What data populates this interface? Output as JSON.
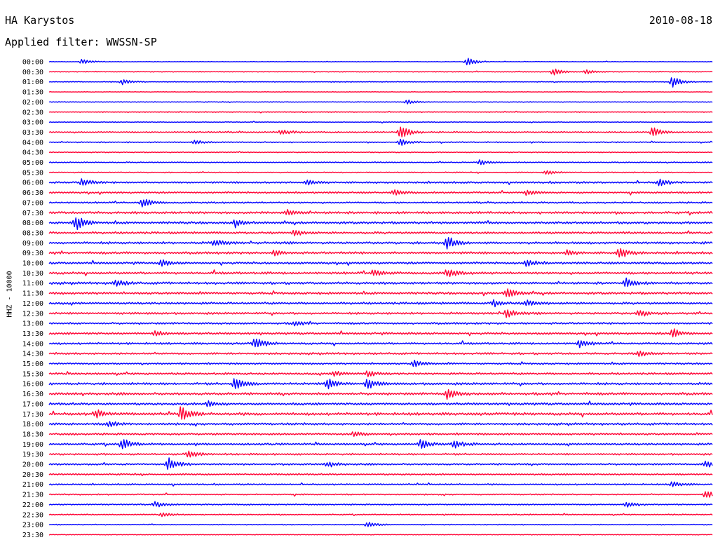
{
  "header": {
    "station": "HA Karystos",
    "date": "2010-08-18",
    "filter": "Applied filter: WWSSN-SP"
  },
  "chart_data": {
    "type": "line",
    "title": "HA Karystos",
    "subtitle": "Applied filter: WWSSN-SP",
    "ylabel": "HHZ - 10000",
    "xlabel": "",
    "grid": false,
    "trace_colors": [
      "#0000ff",
      "#ff0033"
    ],
    "row_labels": [
      "00:00",
      "00:30",
      "01:00",
      "01:30",
      "02:00",
      "02:30",
      "03:00",
      "03:30",
      "04:00",
      "04:30",
      "05:00",
      "05:30",
      "06:00",
      "06:30",
      "07:00",
      "07:30",
      "08:00",
      "08:30",
      "09:00",
      "09:30",
      "10:00",
      "10:30",
      "11:00",
      "11:30",
      "12:00",
      "12:30",
      "13:00",
      "13:30",
      "14:00",
      "14:30",
      "15:00",
      "15:30",
      "16:00",
      "16:30",
      "17:00",
      "17:30",
      "18:00",
      "18:30",
      "19:00",
      "19:30",
      "20:00",
      "20:30",
      "21:00",
      "21:30",
      "22:00",
      "22:30",
      "23:00",
      "23:30"
    ],
    "row_noise": [
      0.3,
      0.4,
      0.4,
      0.3,
      0.4,
      0.4,
      0.4,
      0.8,
      0.6,
      0.5,
      0.6,
      0.6,
      1.0,
      1.0,
      0.9,
      1.3,
      1.3,
      1.2,
      1.3,
      1.3,
      1.2,
      1.3,
      1.3,
      1.3,
      1.2,
      1.2,
      1.1,
      1.2,
      1.1,
      1.1,
      1.0,
      1.1,
      1.3,
      1.4,
      1.3,
      1.5,
      1.2,
      1.1,
      1.1,
      1.0,
      1.0,
      0.9,
      0.8,
      0.7,
      0.7,
      0.6,
      0.5,
      0.4
    ],
    "events": [
      {
        "row": 0,
        "x": 0.05,
        "amp": 4
      },
      {
        "row": 0,
        "x": 0.63,
        "amp": 6
      },
      {
        "row": 1,
        "x": 0.76,
        "amp": 5
      },
      {
        "row": 1,
        "x": 0.81,
        "amp": 3
      },
      {
        "row": 2,
        "x": 0.11,
        "amp": 4
      },
      {
        "row": 2,
        "x": 0.94,
        "amp": 8
      },
      {
        "row": 4,
        "x": 0.54,
        "amp": 3
      },
      {
        "row": 7,
        "x": 0.35,
        "amp": 4
      },
      {
        "row": 7,
        "x": 0.53,
        "amp": 9
      },
      {
        "row": 7,
        "x": 0.91,
        "amp": 7
      },
      {
        "row": 8,
        "x": 0.22,
        "amp": 3
      },
      {
        "row": 8,
        "x": 0.53,
        "amp": 5
      },
      {
        "row": 10,
        "x": 0.65,
        "amp": 4
      },
      {
        "row": 11,
        "x": 0.75,
        "amp": 3
      },
      {
        "row": 12,
        "x": 0.05,
        "amp": 6
      },
      {
        "row": 12,
        "x": 0.39,
        "amp": 4
      },
      {
        "row": 12,
        "x": 0.92,
        "amp": 5
      },
      {
        "row": 13,
        "x": 0.52,
        "amp": 4
      },
      {
        "row": 13,
        "x": 0.72,
        "amp": 4
      },
      {
        "row": 14,
        "x": 0.14,
        "amp": 7
      },
      {
        "row": 15,
        "x": 0.36,
        "amp": 4
      },
      {
        "row": 16,
        "x": 0.04,
        "amp": 11
      },
      {
        "row": 16,
        "x": 0.28,
        "amp": 4
      },
      {
        "row": 17,
        "x": 0.37,
        "amp": 4
      },
      {
        "row": 18,
        "x": 0.25,
        "amp": 5
      },
      {
        "row": 18,
        "x": 0.6,
        "amp": 9
      },
      {
        "row": 19,
        "x": 0.34,
        "amp": 4
      },
      {
        "row": 19,
        "x": 0.78,
        "amp": 4
      },
      {
        "row": 19,
        "x": 0.86,
        "amp": 7
      },
      {
        "row": 20,
        "x": 0.17,
        "amp": 4
      },
      {
        "row": 20,
        "x": 0.72,
        "amp": 5
      },
      {
        "row": 21,
        "x": 0.49,
        "amp": 5
      },
      {
        "row": 21,
        "x": 0.6,
        "amp": 6
      },
      {
        "row": 22,
        "x": 0.1,
        "amp": 5
      },
      {
        "row": 22,
        "x": 0.87,
        "amp": 6
      },
      {
        "row": 23,
        "x": 0.69,
        "amp": 7
      },
      {
        "row": 24,
        "x": 0.67,
        "amp": 5
      },
      {
        "row": 24,
        "x": 0.72,
        "amp": 5
      },
      {
        "row": 25,
        "x": 0.69,
        "amp": 6
      },
      {
        "row": 25,
        "x": 0.89,
        "amp": 5
      },
      {
        "row": 26,
        "x": 0.37,
        "amp": 3
      },
      {
        "row": 27,
        "x": 0.16,
        "amp": 4
      },
      {
        "row": 27,
        "x": 0.94,
        "amp": 7
      },
      {
        "row": 28,
        "x": 0.31,
        "amp": 9
      },
      {
        "row": 28,
        "x": 0.8,
        "amp": 5
      },
      {
        "row": 29,
        "x": 0.89,
        "amp": 4
      },
      {
        "row": 30,
        "x": 0.55,
        "amp": 5
      },
      {
        "row": 31,
        "x": 0.43,
        "amp": 4
      },
      {
        "row": 31,
        "x": 0.48,
        "amp": 4
      },
      {
        "row": 32,
        "x": 0.28,
        "amp": 9
      },
      {
        "row": 32,
        "x": 0.42,
        "amp": 8
      },
      {
        "row": 32,
        "x": 0.48,
        "amp": 7
      },
      {
        "row": 33,
        "x": 0.6,
        "amp": 8
      },
      {
        "row": 34,
        "x": 0.24,
        "amp": 4
      },
      {
        "row": 35,
        "x": 0.2,
        "amp": 10
      },
      {
        "row": 35,
        "x": 0.07,
        "amp": 6
      },
      {
        "row": 36,
        "x": 0.09,
        "amp": 4
      },
      {
        "row": 37,
        "x": 0.46,
        "amp": 4
      },
      {
        "row": 38,
        "x": 0.11,
        "amp": 8
      },
      {
        "row": 38,
        "x": 0.56,
        "amp": 6
      },
      {
        "row": 38,
        "x": 0.61,
        "amp": 6
      },
      {
        "row": 39,
        "x": 0.21,
        "amp": 5
      },
      {
        "row": 40,
        "x": 0.18,
        "amp": 9
      },
      {
        "row": 40,
        "x": 0.42,
        "amp": 4
      },
      {
        "row": 40,
        "x": 0.99,
        "amp": 5
      },
      {
        "row": 42,
        "x": 0.94,
        "amp": 4
      },
      {
        "row": 43,
        "x": 0.99,
        "amp": 6
      },
      {
        "row": 44,
        "x": 0.16,
        "amp": 4
      },
      {
        "row": 44,
        "x": 0.87,
        "amp": 4
      },
      {
        "row": 45,
        "x": 0.17,
        "amp": 3
      },
      {
        "row": 46,
        "x": 0.48,
        "amp": 4
      }
    ]
  }
}
